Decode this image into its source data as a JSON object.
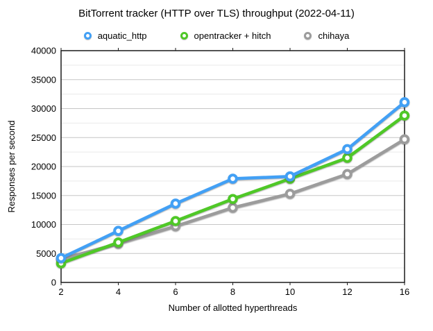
{
  "title": "BitTorrent tracker (HTTP over TLS) throughput (2022-04-11)",
  "chart_data": {
    "type": "line",
    "title": "BitTorrent tracker (HTTP over TLS) throughput (2022-04-11)",
    "categories": [
      2,
      4,
      6,
      8,
      10,
      12,
      16
    ],
    "series": [
      {
        "name": "aquatic_http",
        "color": "#42A0F5",
        "values": [
          4200,
          8900,
          13600,
          17900,
          18300,
          23000,
          31100
        ]
      },
      {
        "name": "opentracker + hitch",
        "color": "#4FC827",
        "values": [
          3300,
          6900,
          10600,
          14400,
          17900,
          21500,
          28800
        ]
      },
      {
        "name": "chihaya",
        "color": "#9C9C9C",
        "values": [
          4000,
          6700,
          9700,
          12900,
          15300,
          18700,
          24700
        ]
      }
    ],
    "xlabel": "Number of allotted hyperthreads",
    "ylabel": "Responses per second",
    "ylim": [
      0,
      40000
    ],
    "y_major_step": 5000,
    "y_minor_step": 2500,
    "grid": true,
    "legend_position": "top",
    "axis_color": "#1a1a1a",
    "major_grid_color": "#c6c6c6",
    "minor_grid_color": "#e9e9e9"
  }
}
